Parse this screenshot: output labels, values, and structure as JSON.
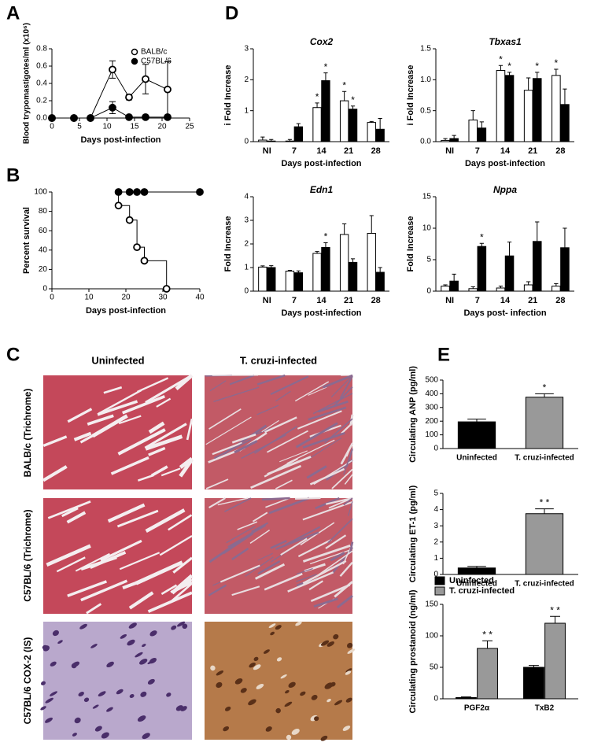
{
  "panel_labels": [
    "A",
    "B",
    "C",
    "D",
    "E"
  ],
  "histology": {
    "columns": [
      "Uninfected",
      "T. cruzi-infected"
    ],
    "rows": [
      "BALB/c (Trichrome)",
      "C57BL/6 (Trichrome)",
      "C57BL/6 COX-2 (IS)"
    ]
  },
  "chart_data": [
    {
      "type": "line",
      "ylabel": "Blood trypomastigotes/ml (x10⁶)",
      "xlabel": "Days post-infection",
      "xlim": [
        0,
        25
      ],
      "xticks": [
        0,
        5,
        10,
        15,
        20,
        25
      ],
      "ylim": [
        0,
        0.8
      ],
      "yticks": [
        {
          "value": 0,
          "label": "0.0"
        },
        0.2,
        0.4,
        0.6,
        0.8
      ],
      "legend": "upper right",
      "series": [
        {
          "name": "BALB/c",
          "marker": "open",
          "color": "#000000",
          "x": [
            0,
            4,
            7,
            11,
            14,
            17,
            21
          ],
          "values": [
            0,
            0,
            0,
            0.56,
            0.24,
            0.45,
            0.33
          ],
          "errors": [
            null,
            null,
            null,
            0.1,
            0.03,
            0.17,
            0.32
          ]
        },
        {
          "name": "C57BL/6",
          "marker": "filled",
          "color": "#000000",
          "x": [
            0,
            4,
            7,
            11,
            14,
            17,
            21
          ],
          "values": [
            0,
            0,
            0,
            0.12,
            0.01,
            0.01,
            0.01
          ],
          "errors": [
            null,
            null,
            null,
            0.07,
            null,
            null,
            null
          ]
        }
      ]
    },
    {
      "type": "line",
      "step": true,
      "ylabel": "Percent survival",
      "xlabel": "Days post-infection",
      "xlim": [
        0,
        40
      ],
      "xticks": [
        0,
        10,
        20,
        30,
        40
      ],
      "ylim": [
        0,
        100
      ],
      "yticks": [
        0,
        20,
        40,
        60,
        80,
        100
      ],
      "series": [
        {
          "marker": "filled",
          "color": "#000000",
          "x": [
            18,
            21,
            23,
            25,
            40
          ],
          "values": [
            100,
            100,
            100,
            100,
            100
          ]
        },
        {
          "marker": "open",
          "color": "#000000",
          "x": [
            18,
            21,
            23,
            25,
            31
          ],
          "values": [
            86,
            71,
            43,
            29,
            0
          ]
        }
      ]
    },
    {
      "type": "bar",
      "title": "Cox2",
      "ylabel": "i Fold Increase",
      "xlabel": "Days post-infection",
      "categories": [
        "NI",
        "7",
        "14",
        "21",
        "28"
      ],
      "ylim": [
        0,
        3
      ],
      "yticks": [
        0,
        1,
        2,
        3
      ],
      "series": [
        {
          "color": "#ffffff",
          "values": [
            0.05,
            0.02,
            1.1,
            1.32,
            0.62
          ],
          "errors": [
            0.1,
            0.05,
            0.15,
            0.3,
            0.03
          ],
          "annotations": [
            null,
            null,
            "*",
            "*",
            null
          ]
        },
        {
          "color": "#000000",
          "values": [
            0.02,
            0.48,
            1.97,
            1.05,
            0.4
          ],
          "errors": [
            0.05,
            0.1,
            0.25,
            0.1,
            0.35
          ],
          "annotations": [
            null,
            null,
            "*",
            "*",
            null
          ]
        }
      ]
    },
    {
      "type": "bar",
      "title": "Tbxas1",
      "ylabel": "i Fold Increase",
      "xlabel": "Days post-infection",
      "categories": [
        "NI",
        "7",
        "14",
        "21",
        "28"
      ],
      "ylim": [
        0,
        1.5
      ],
      "yticks": [
        {
          "value": 0,
          "label": "0.0"
        },
        0.5,
        {
          "value": 1,
          "label": "1.0"
        },
        1.5
      ],
      "series": [
        {
          "color": "#ffffff",
          "values": [
            0.02,
            0.35,
            1.15,
            0.83,
            1.07
          ],
          "errors": [
            0.03,
            0.15,
            0.08,
            0.2,
            0.1
          ],
          "annotations": [
            null,
            null,
            "*",
            null,
            "*"
          ]
        },
        {
          "color": "#000000",
          "values": [
            0.05,
            0.22,
            1.07,
            1.02,
            0.6
          ],
          "errors": [
            0.05,
            0.1,
            0.05,
            0.1,
            0.25
          ],
          "annotations": [
            null,
            null,
            "*",
            "*",
            null
          ]
        }
      ]
    },
    {
      "type": "bar",
      "title": "Edn1",
      "ylabel": "Fold Increase",
      "xlabel": "Days post-infection",
      "categories": [
        "NI",
        "7",
        "14",
        "21",
        "28"
      ],
      "ylim": [
        0,
        4
      ],
      "yticks": [
        0,
        1,
        2,
        3,
        4
      ],
      "series": [
        {
          "color": "#ffffff",
          "values": [
            1.02,
            0.85,
            1.6,
            2.4,
            2.45
          ],
          "errors": [
            0.05,
            0.03,
            0.08,
            0.45,
            0.75
          ],
          "annotations": [
            null,
            null,
            null,
            null,
            null
          ]
        },
        {
          "color": "#000000",
          "values": [
            1.0,
            0.78,
            1.85,
            1.22,
            0.8
          ],
          "errors": [
            0.08,
            0.08,
            0.2,
            0.15,
            0.2
          ],
          "annotations": [
            null,
            null,
            "*",
            null,
            null
          ]
        }
      ]
    },
    {
      "type": "bar",
      "title": "Nppa",
      "ylabel": "Fold Increase",
      "xlabel": "Days post- infection",
      "categories": [
        "NI",
        "7",
        "14",
        "21",
        "28"
      ],
      "ylim": [
        0,
        15
      ],
      "yticks": [
        0,
        5,
        10,
        15
      ],
      "series": [
        {
          "color": "#ffffff",
          "values": [
            0.8,
            0.4,
            0.5,
            1.0,
            0.8
          ],
          "errors": [
            0.2,
            0.3,
            0.3,
            0.5,
            0.4
          ],
          "annotations": [
            null,
            null,
            null,
            null,
            null
          ]
        },
        {
          "color": "#000000",
          "values": [
            1.6,
            7.1,
            5.6,
            7.9,
            6.9
          ],
          "errors": [
            1.1,
            0.5,
            2.2,
            3.1,
            3.1
          ],
          "annotations": [
            null,
            "*",
            null,
            null,
            null
          ]
        }
      ]
    },
    {
      "type": "bar",
      "ylabel": "Circulating ANP (pg/ml)",
      "categories": [
        "Uninfected",
        "T. cruzi-infected"
      ],
      "ylim": [
        0,
        500
      ],
      "yticks": [
        0,
        100,
        200,
        300,
        400,
        500
      ],
      "values": [
        195,
        375
      ],
      "errors": [
        20,
        25
      ],
      "colors": [
        "#000000",
        "#999999"
      ],
      "annotations": [
        null,
        "*"
      ]
    },
    {
      "type": "bar",
      "ylabel": "Circulating ET-1 (pg/ml)",
      "categories": [
        "Uninfected",
        "T. cruzi-infected"
      ],
      "ylim": [
        0,
        5
      ],
      "yticks": [
        0,
        1,
        2,
        3,
        4,
        5
      ],
      "values": [
        0.4,
        3.75
      ],
      "errors": [
        0.1,
        0.3
      ],
      "colors": [
        "#000000",
        "#999999"
      ],
      "annotations": [
        null,
        "* *"
      ]
    },
    {
      "type": "bar",
      "ylabel": "Circulating prostanoid (ng/ml)",
      "categories": [
        "PGF2α",
        "TxB2"
      ],
      "ylim": [
        0,
        150
      ],
      "yticks": [
        0,
        50,
        100,
        150
      ],
      "legend": "upper left",
      "series": [
        {
          "name": "Uninfected",
          "color": "#000000",
          "values": [
            2,
            50
          ],
          "errors": [
            1,
            3
          ],
          "annotations": [
            null,
            null
          ]
        },
        {
          "name": "T. cruzi-infected",
          "color": "#999999",
          "values": [
            80,
            120
          ],
          "errors": [
            12,
            11
          ],
          "annotations": [
            "* *",
            "* *"
          ]
        }
      ]
    }
  ]
}
